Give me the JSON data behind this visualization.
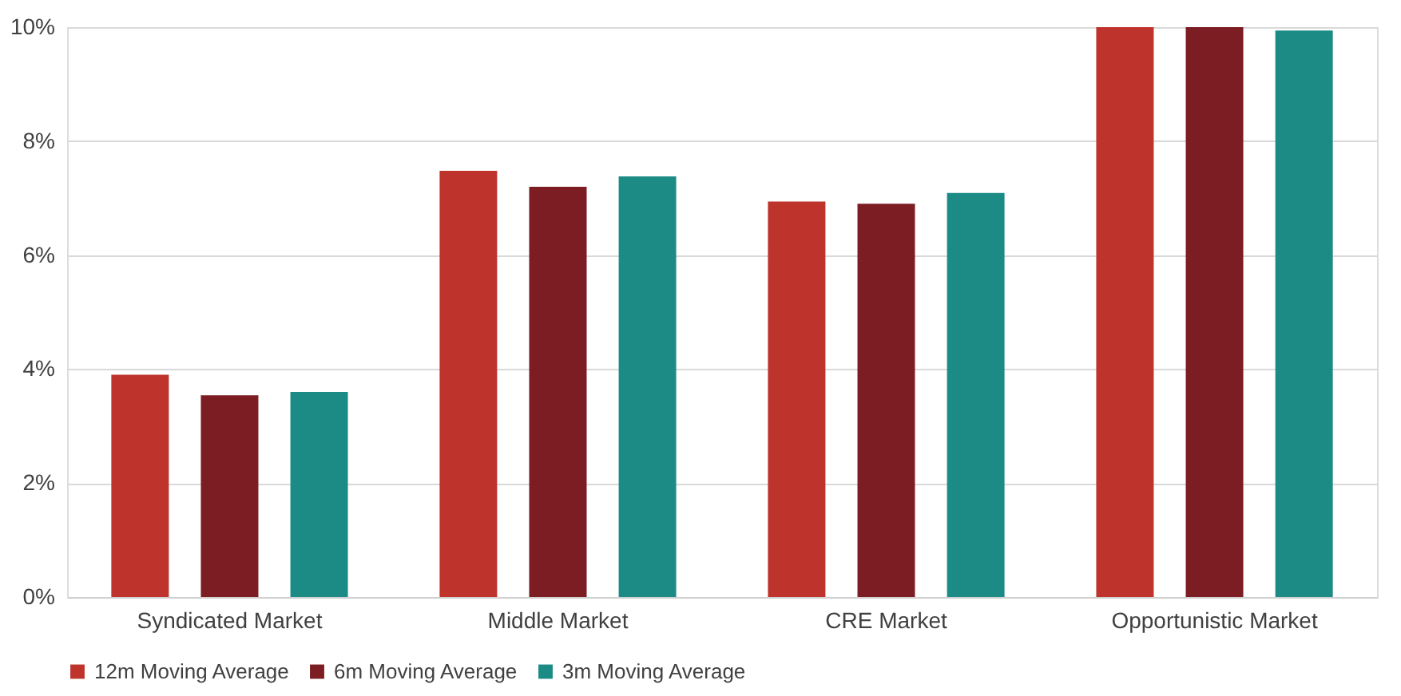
{
  "chart_data": {
    "type": "bar",
    "categories": [
      "Syndicated Market",
      "Middle Market",
      "CRE Market",
      "Opportunistic Market"
    ],
    "series": [
      {
        "name": "12m Moving Average",
        "color": "#be342c",
        "values": [
          3.9,
          7.48,
          6.94,
          10
        ]
      },
      {
        "name": "6m Moving Average",
        "color": "#7b1d22",
        "values": [
          3.54,
          7.2,
          6.9,
          10
        ]
      },
      {
        "name": "3m Moving Average",
        "color": "#1c8b85",
        "values": [
          3.6,
          7.38,
          7.09,
          9.94
        ]
      }
    ],
    "ylim": [
      0,
      10
    ],
    "yticks": [
      {
        "value": 0,
        "label": "0%"
      },
      {
        "value": 2,
        "label": "2%"
      },
      {
        "value": 4,
        "label": "4%"
      },
      {
        "value": 6,
        "label": "6%"
      },
      {
        "value": 8,
        "label": "8%"
      },
      {
        "value": 10,
        "label": "10%"
      }
    ],
    "grid": "y",
    "legend": "bottom"
  }
}
